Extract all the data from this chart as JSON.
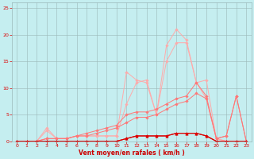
{
  "xlabel": "Vent moyen/en rafales ( km/h )",
  "bg_color": "#c5eef0",
  "grid_color": "#9ab8b8",
  "xlim": [
    -0.5,
    23.5
  ],
  "ylim": [
    0,
    26
  ],
  "yticks": [
    0,
    5,
    10,
    15,
    20,
    25
  ],
  "xticks": [
    0,
    1,
    2,
    3,
    4,
    5,
    6,
    7,
    8,
    9,
    10,
    11,
    12,
    13,
    14,
    15,
    16,
    17,
    18,
    19,
    20,
    21,
    22,
    23
  ],
  "line1_x": [
    0,
    1,
    2,
    3,
    4,
    5,
    6,
    7,
    8,
    9,
    10,
    11,
    12,
    13,
    14,
    15,
    16,
    17,
    18,
    19,
    20,
    21,
    22,
    23
  ],
  "line1_y": [
    0,
    0,
    0,
    2.5,
    0.5,
    0.5,
    1,
    1,
    1,
    1,
    1,
    13,
    11.5,
    11,
    5,
    18,
    21,
    19,
    11,
    11.5,
    0.5,
    0,
    0,
    0
  ],
  "line2_x": [
    0,
    1,
    2,
    3,
    4,
    5,
    6,
    7,
    8,
    9,
    10,
    11,
    12,
    13,
    14,
    15,
    16,
    17,
    18,
    19,
    20,
    21,
    22,
    23
  ],
  "line2_y": [
    0,
    0,
    0,
    2,
    0.5,
    0.5,
    1,
    1,
    1,
    1,
    1,
    7,
    11,
    11.5,
    5,
    15,
    18.5,
    18.5,
    11,
    8,
    0.5,
    0,
    0,
    0
  ],
  "line3_x": [
    0,
    1,
    2,
    3,
    4,
    5,
    6,
    7,
    8,
    9,
    10,
    11,
    12,
    13,
    14,
    15,
    16,
    17,
    18,
    19,
    20,
    21,
    22,
    23
  ],
  "line3_y": [
    0,
    0,
    0,
    0.5,
    0.5,
    0.5,
    1,
    1.5,
    2,
    2.5,
    3,
    5,
    5.5,
    5.5,
    6,
    7,
    8,
    8.5,
    11,
    8.5,
    0.5,
    1,
    8.5,
    0
  ],
  "line4_x": [
    0,
    1,
    2,
    3,
    4,
    5,
    6,
    7,
    8,
    9,
    10,
    11,
    12,
    13,
    14,
    15,
    16,
    17,
    18,
    19,
    20,
    21,
    22,
    23
  ],
  "line4_y": [
    0,
    0,
    0,
    0.5,
    0.5,
    0.5,
    1,
    1,
    1.5,
    2,
    2.5,
    3.5,
    4.5,
    4.5,
    5,
    6,
    7,
    7.5,
    9,
    8,
    0.5,
    1,
    8.5,
    0
  ],
  "line5_x": [
    0,
    1,
    2,
    3,
    4,
    5,
    6,
    7,
    8,
    9,
    10,
    11,
    12,
    13,
    14,
    15,
    16,
    17,
    18,
    19,
    20,
    21,
    22,
    23
  ],
  "line5_y": [
    0,
    0,
    0,
    0,
    0,
    0,
    0,
    0,
    0,
    0,
    0,
    0.5,
    1,
    1,
    1,
    1,
    1.5,
    1.5,
    1.5,
    1,
    0,
    0,
    0,
    0
  ],
  "line6_x": [
    0,
    1,
    2,
    3,
    4,
    5,
    6,
    7,
    8,
    9,
    10,
    11,
    12,
    13,
    14,
    15,
    16,
    17,
    18,
    19,
    20,
    21,
    22,
    23
  ],
  "line6_y": [
    0,
    0,
    0,
    0,
    0,
    0,
    0,
    0,
    0,
    0,
    0,
    0.5,
    1,
    1,
    1,
    1,
    1.5,
    1.5,
    1.5,
    1,
    0,
    0,
    0,
    0
  ],
  "color_light": "#ffaaaa",
  "color_dark": "#dd0000",
  "color_mid": "#ff7777",
  "tick_color": "#dd0000",
  "xlabel_color": "#cc0000"
}
